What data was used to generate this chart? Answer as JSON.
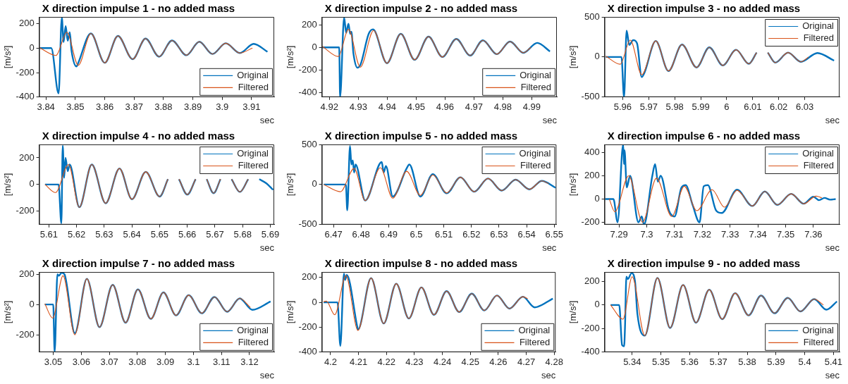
{
  "chart_data": [
    {
      "type": "line",
      "title": "X direction impulse 1 - no added mass",
      "xlabel": "sec",
      "ylabel": "[m/s²]",
      "xlim": [
        3.8377,
        3.9177
      ],
      "xticks": [
        3.84,
        3.85,
        3.86,
        3.87,
        3.88,
        3.89,
        3.9,
        3.91
      ],
      "ylim": [
        -400,
        255
      ],
      "yticks": [
        -400,
        -200,
        0,
        200
      ],
      "legend": "bottom right",
      "series": [
        {
          "name": "Original",
          "color": "#0072bd",
          "x": [
            3.8377,
            3.8418,
            3.8443,
            3.8454,
            3.846,
            3.8467,
            3.8474,
            3.8481,
            3.8487,
            3.8504,
            3.851,
            3.8553,
            3.86,
            3.8645,
            3.8695,
            3.8739,
            3.8785,
            3.8829,
            3.8878,
            3.8922,
            3.8967,
            3.9012,
            3.906,
            3.9107,
            3.9154
          ],
          "values": [
            0,
            0,
            -370,
            250,
            50,
            180,
            60,
            130,
            -20,
            -150,
            -120,
            120,
            -120,
            100,
            -90,
            78,
            -70,
            62,
            -58,
            52,
            -48,
            40,
            -40,
            35,
            -30
          ]
        },
        {
          "name": "Filtered",
          "color": "#d95319",
          "x": [
            3.8377,
            3.8434,
            3.8471,
            3.851,
            3.8553,
            3.86,
            3.8645,
            3.8695,
            3.8739,
            3.8785,
            3.8829,
            3.8878,
            3.8922,
            3.8967,
            3.9012,
            3.906,
            3.9103
          ],
          "values": [
            5,
            -60,
            130,
            -140,
            120,
            -120,
            100,
            -90,
            78,
            -70,
            62,
            -58,
            52,
            -48,
            40,
            -40,
            0
          ]
        }
      ]
    },
    {
      "type": "line",
      "title": "X direction impulse 2 - no added mass",
      "xlabel": "sec",
      "ylabel": "[m/s²]",
      "xlim": [
        4.9174,
        4.9987
      ],
      "xticks": [
        4.92,
        4.93,
        4.94,
        4.95,
        4.96,
        4.97,
        4.98,
        4.99
      ],
      "ylim": [
        -440,
        270
      ],
      "yticks": [
        -400,
        -200,
        0,
        200
      ],
      "legend": "bottom right",
      "series": [
        {
          "name": "Original",
          "color": "#0072bd",
          "x": [
            4.9175,
            4.9234,
            4.9237,
            4.9251,
            4.9258,
            4.9266,
            4.9272,
            4.9276,
            4.9283,
            4.9297,
            4.9308,
            4.9336,
            4.9351,
            4.9399,
            4.9447,
            4.9495,
            4.9543,
            4.9591,
            4.9639,
            4.9687,
            4.9731,
            4.9779,
            4.9825,
            4.9871,
            4.9919,
            4.9963
          ],
          "values": [
            0,
            0,
            -439,
            265,
            130,
            210,
            120,
            140,
            -50,
            -180,
            -150,
            120,
            160,
            -140,
            120,
            -110,
            95,
            -85,
            75,
            -72,
            63,
            -60,
            52,
            -48,
            40,
            -35
          ]
        },
        {
          "name": "Filtered",
          "color": "#d95319",
          "x": [
            4.9175,
            4.9231,
            4.9266,
            4.9307,
            4.9353,
            4.9399,
            4.9447,
            4.9495,
            4.9543,
            4.9591,
            4.9639,
            4.9687,
            4.9731,
            4.9779,
            4.9825,
            4.9871,
            4.9897
          ],
          "values": [
            10,
            -80,
            160,
            -175,
            150,
            -140,
            120,
            -110,
            95,
            -85,
            75,
            -72,
            63,
            -60,
            52,
            -48,
            0
          ]
        }
      ]
    },
    {
      "type": "line",
      "title": "X direction impulse 3 - no added mass",
      "xlabel": "sec",
      "ylabel": "[m/s²]",
      "xlim": [
        5.953,
        6.0434
      ],
      "xticks": [
        5.96,
        5.97,
        5.98,
        5.99,
        6,
        6.01,
        6.02,
        6.03
      ],
      "ylim": [
        -500,
        500
      ],
      "yticks": [
        -500,
        0,
        500
      ],
      "legend": "top right",
      "series": [
        {
          "name": "Original",
          "color": "#0072bd",
          "x": [
            5.9535,
            5.9595,
            5.9605,
            5.9615,
            5.9625,
            5.964,
            5.9655,
            5.9673,
            5.9683,
            5.9727,
            5.9776,
            5.9828,
            5.9884,
            5.9933,
            5.9985,
            6.0036,
            6.0085,
            6.0115,
            6.0136,
            6.0158,
            6.0187,
            6.0236,
            6.0285,
            6.0349,
            6.0413
          ],
          "values": [
            0,
            0,
            -500,
            330,
            150,
            210,
            170,
            -250,
            -200,
            200,
            -175,
            155,
            -130,
            120,
            -105,
            90,
            -85,
            55,
            null,
            55,
            -70,
            55,
            -60,
            50,
            -45
          ]
        },
        {
          "name": "Filtered",
          "color": "#d95319",
          "x": [
            5.9535,
            5.959,
            5.9629,
            5.9673,
            5.9727,
            5.9776,
            5.9828,
            5.9884,
            5.9933,
            5.9985,
            6.0036,
            6.0085,
            6.0115,
            6.0136,
            6.0158,
            6.0187,
            6.0236,
            6.0285,
            6.0315
          ],
          "values": [
            10,
            -90,
            210,
            -220,
            200,
            -175,
            155,
            -130,
            120,
            -105,
            90,
            -85,
            55,
            null,
            55,
            -70,
            55,
            -60,
            0
          ]
        }
      ]
    },
    {
      "type": "line",
      "title": "X direction impulse 4 - no added mass",
      "xlabel": "sec",
      "ylabel": "[m/s²]",
      "xlim": [
        5.6065,
        5.6914
      ],
      "xticks": [
        5.61,
        5.62,
        5.63,
        5.64,
        5.65,
        5.66,
        5.67,
        5.68,
        5.69
      ],
      "ylim": [
        -300,
        300
      ],
      "yticks": [
        -200,
        0,
        200
      ],
      "legend": "top right",
      "series": [
        {
          "name": "Original",
          "color": "#0072bd",
          "x": [
            5.6086,
            5.6135,
            5.6145,
            5.615,
            5.6155,
            5.616,
            5.6168,
            5.6175,
            5.621,
            5.6255,
            5.6305,
            5.6355,
            5.64,
            5.645,
            5.65,
            5.653,
            5.655,
            5.657,
            5.66,
            5.663,
            5.665,
            5.667,
            5.6695,
            5.672,
            5.674,
            5.676,
            5.679,
            5.682,
            5.684,
            5.686,
            5.6885,
            5.691
          ],
          "values": [
            0,
            0,
            -290,
            290,
            50,
            200,
            100,
            150,
            -170,
            150,
            -140,
            120,
            -110,
            95,
            -90,
            40,
            null,
            40,
            -75,
            40,
            null,
            40,
            -65,
            40,
            null,
            40,
            -55,
            40,
            null,
            40,
            10,
            -40
          ]
        },
        {
          "name": "Filtered",
          "color": "#d95319",
          "x": [
            5.6086,
            5.6124,
            5.6171,
            5.621,
            5.6255,
            5.6305,
            5.6355,
            5.64,
            5.645,
            5.65,
            5.653,
            5.655,
            5.657,
            5.66,
            5.663,
            5.665,
            5.667,
            5.6695,
            5.672,
            5.674,
            5.676,
            5.679,
            5.682
          ],
          "values": [
            0,
            -60,
            150,
            -170,
            150,
            -140,
            120,
            -110,
            95,
            -90,
            40,
            null,
            40,
            -75,
            40,
            null,
            40,
            -65,
            40,
            null,
            40,
            -55,
            40
          ]
        }
      ]
    },
    {
      "type": "line",
      "title": "X direction impulse 5 - no added mass",
      "xlabel": "sec",
      "ylabel": "[m/s²]",
      "xlim": [
        6.4658,
        6.5508
      ],
      "xticks": [
        6.47,
        6.48,
        6.49,
        6.5,
        6.51,
        6.52,
        6.53,
        6.54,
        6.55
      ],
      "ylim": [
        -500,
        500
      ],
      "yticks": [
        -500,
        0,
        500
      ],
      "legend": "top right",
      "series": [
        {
          "name": "Original",
          "color": "#0072bd",
          "x": [
            6.4665,
            6.4745,
            6.475,
            6.476,
            6.4765,
            6.477,
            6.4775,
            6.478,
            6.4815,
            6.4875,
            6.4882,
            6.489,
            6.4915,
            6.4965,
            6.4975,
            6.5015,
            6.506,
            6.511,
            6.516,
            6.521,
            6.526,
            6.531,
            6.536,
            6.541,
            6.5455,
            6.5505
          ],
          "values": [
            0,
            0,
            -320,
            480,
            250,
            300,
            150,
            250,
            -200,
            280,
            150,
            230,
            -150,
            200,
            250,
            -150,
            130,
            -110,
            90,
            -90,
            75,
            -75,
            60,
            -60,
            45,
            -40
          ]
        },
        {
          "name": "Filtered",
          "color": "#d95319",
          "x": [
            6.4665,
            6.4725,
            6.4775,
            6.4815,
            6.487,
            6.4915,
            6.4965,
            6.5015,
            6.506,
            6.511,
            6.516,
            6.521,
            6.526,
            6.531,
            6.536,
            6.541,
            6.5455,
            6.548
          ],
          "values": [
            0,
            -90,
            200,
            -200,
            210,
            -170,
            165,
            -135,
            120,
            -105,
            90,
            -90,
            75,
            -75,
            60,
            -60,
            45,
            10
          ]
        }
      ]
    },
    {
      "type": "line",
      "title": "X direction impulse 6 - no added mass",
      "xlabel": "sec",
      "ylabel": "[m/s²]",
      "xlim": [
        7.2848,
        7.3694
      ],
      "xticks": [
        7.29,
        7.3,
        7.31,
        7.32,
        7.33,
        7.34,
        7.35,
        7.36
      ],
      "ylim": [
        -220,
        470
      ],
      "yticks": [
        -200,
        0,
        200,
        400
      ],
      "legend": "top right",
      "series": [
        {
          "name": "Original",
          "color": "#0072bd",
          "x": [
            7.285,
            7.288,
            7.2895,
            7.2915,
            7.2918,
            7.292,
            7.2928,
            7.294,
            7.297,
            7.2982,
            7.299,
            7.302,
            7.303,
            7.304,
            7.305,
            7.308,
            7.31,
            7.3125,
            7.314,
            7.3165,
            7.319,
            7.3205,
            7.322,
            7.325,
            7.327,
            7.3325,
            7.338,
            7.3425,
            7.347,
            7.352,
            7.3565,
            7.36,
            7.362,
            7.364,
            7.366,
            7.368
          ],
          "values": [
            0,
            0,
            -200,
            470,
            300,
            420,
            100,
            200,
            -200,
            -150,
            -220,
            200,
            300,
            150,
            200,
            -100,
            -150,
            100,
            120,
            -50,
            -200,
            110,
            120,
            -100,
            -120,
            80,
            -60,
            65,
            -50,
            45,
            -40,
            20,
            -10,
            10,
            -5,
            0
          ]
        },
        {
          "name": "Filtered",
          "color": "#d95319",
          "x": [
            7.2865,
            7.2885,
            7.2935,
            7.2985,
            7.3035,
            7.309,
            7.3135,
            7.318,
            7.3235,
            7.328,
            7.3325,
            7.338,
            7.3425,
            7.347,
            7.352,
            7.3565,
            7.361,
            7.363
          ],
          "values": [
            0,
            -110,
            200,
            -200,
            180,
            -150,
            110,
            -100,
            80,
            -70,
            75,
            -60,
            65,
            -50,
            45,
            -40,
            25,
            10
          ]
        }
      ]
    },
    {
      "type": "line",
      "title": "X direction impulse 7 - no added mass",
      "xlabel": "sec",
      "ylabel": "[m/s²]",
      "xlim": [
        3.045,
        3.1288
      ],
      "xticks": [
        3.05,
        3.06,
        3.07,
        3.08,
        3.09,
        3.1,
        3.11,
        3.12
      ],
      "ylim": [
        -315,
        215
      ],
      "yticks": [
        -200,
        0,
        200
      ],
      "legend": "bottom right",
      "series": [
        {
          "name": "Original",
          "color": "#0072bd",
          "x": [
            3.047,
            3.05,
            3.0505,
            3.0515,
            3.052,
            3.053,
            3.054,
            3.0577,
            3.062,
            3.0665,
            3.0712,
            3.0758,
            3.0802,
            3.0848,
            3.0893,
            3.0938,
            3.0983,
            3.103,
            3.1075,
            3.112,
            3.1165,
            3.121,
            3.1275
          ],
          "values": [
            0,
            0,
            -315,
            200,
            190,
            210,
            200,
            -190,
            170,
            -150,
            130,
            -120,
            100,
            -95,
            80,
            -72,
            62,
            -58,
            50,
            -48,
            40,
            -35,
            20
          ]
        },
        {
          "name": "Filtered",
          "color": "#d95319",
          "x": [
            3.047,
            3.0498,
            3.0535,
            3.0577,
            3.062,
            3.0665,
            3.0712,
            3.0758,
            3.0802,
            3.0848,
            3.0893,
            3.0938,
            3.0983,
            3.103,
            3.1075,
            3.112,
            3.1165,
            3.1203
          ],
          "values": [
            5,
            -90,
            190,
            -200,
            170,
            -150,
            130,
            -120,
            100,
            -95,
            80,
            -72,
            62,
            -58,
            50,
            -48,
            40,
            -20
          ]
        }
      ]
    },
    {
      "type": "line",
      "title": "X direction impulse 8 - no added mass",
      "xlabel": "sec",
      "ylabel": "[m/s²]",
      "xlim": [
        4.1969,
        4.2805
      ],
      "xticks": [
        4.2,
        4.21,
        4.22,
        4.23,
        4.24,
        4.25,
        4.26,
        4.27,
        4.28
      ],
      "ylim": [
        -400,
        244
      ],
      "yticks": [
        -400,
        -200,
        0,
        200
      ],
      "legend": "bottom right",
      "series": [
        {
          "name": "Original",
          "color": "#0072bd",
          "x": [
            4.1975,
            4.2025,
            4.2035,
            4.2048,
            4.2052,
            4.2058,
            4.2095,
            4.2098,
            4.2145,
            4.219,
            4.2235,
            4.228,
            4.2325,
            4.237,
            4.2415,
            4.246,
            4.2505,
            4.255,
            4.2595,
            4.264,
            4.2688,
            4.273,
            4.2795
          ],
          "values": [
            0,
            0,
            -350,
            230,
            180,
            220,
            -190,
            -220,
            195,
            -170,
            150,
            -130,
            120,
            -100,
            90,
            -78,
            70,
            -65,
            55,
            -50,
            45,
            -40,
            30
          ]
        },
        {
          "name": "Filtered",
          "color": "#d95319",
          "x": [
            4.1975,
            4.1985,
            4.2015,
            4.2055,
            4.2098,
            4.2145,
            4.219,
            4.2235,
            4.228,
            4.2325,
            4.237,
            4.2415,
            4.246,
            4.2505,
            4.255,
            4.2595,
            4.264,
            4.2688,
            4.2705
          ],
          "values": [
            5,
            10,
            -100,
            215,
            -225,
            195,
            -170,
            150,
            -130,
            120,
            -100,
            90,
            -78,
            70,
            -65,
            55,
            -50,
            45,
            30
          ]
        }
      ]
    },
    {
      "type": "line",
      "title": "X direction impulse 9 - no added mass",
      "xlabel": "sec",
      "ylabel": "[m/s²]",
      "xlim": [
        5.3304,
        5.4121
      ],
      "xticks": [
        5.34,
        5.35,
        5.36,
        5.37,
        5.38,
        5.39,
        5.4,
        5.41
      ],
      "ylim": [
        -400,
        280
      ],
      "yticks": [
        -400,
        -200,
        0,
        200
      ],
      "legend": "bottom right",
      "series": [
        {
          "name": "Original",
          "color": "#0072bd",
          "x": [
            5.3325,
            5.3355,
            5.3365,
            5.3372,
            5.3375,
            5.338,
            5.3385,
            5.3398,
            5.341,
            5.3418,
            5.3444,
            5.3488,
            5.3532,
            5.3577,
            5.3622,
            5.3668,
            5.3713,
            5.3758,
            5.3805,
            5.3848,
            5.3895,
            5.3941,
            5.3985,
            5.4033,
            5.4075,
            5.4112
          ],
          "values": [
            0,
            0,
            -340,
            -350,
            -200,
            240,
            220,
            270,
            200,
            -70,
            -260,
            230,
            -195,
            170,
            -150,
            130,
            -120,
            100,
            -88,
            80,
            -70,
            60,
            -55,
            50,
            -40,
            30
          ]
        },
        {
          "name": "Filtered",
          "color": "#d95319",
          "x": [
            5.3325,
            5.3368,
            5.34,
            5.3444,
            5.3488,
            5.3532,
            5.3577,
            5.3622,
            5.3668,
            5.3713,
            5.3758,
            5.3805,
            5.3848,
            5.3895,
            5.3941,
            5.3985,
            5.4033,
            5.4065
          ],
          "values": [
            0,
            -120,
            240,
            -260,
            230,
            -195,
            170,
            -150,
            130,
            -120,
            100,
            -88,
            80,
            -70,
            60,
            -55,
            50,
            0
          ]
        }
      ]
    }
  ]
}
